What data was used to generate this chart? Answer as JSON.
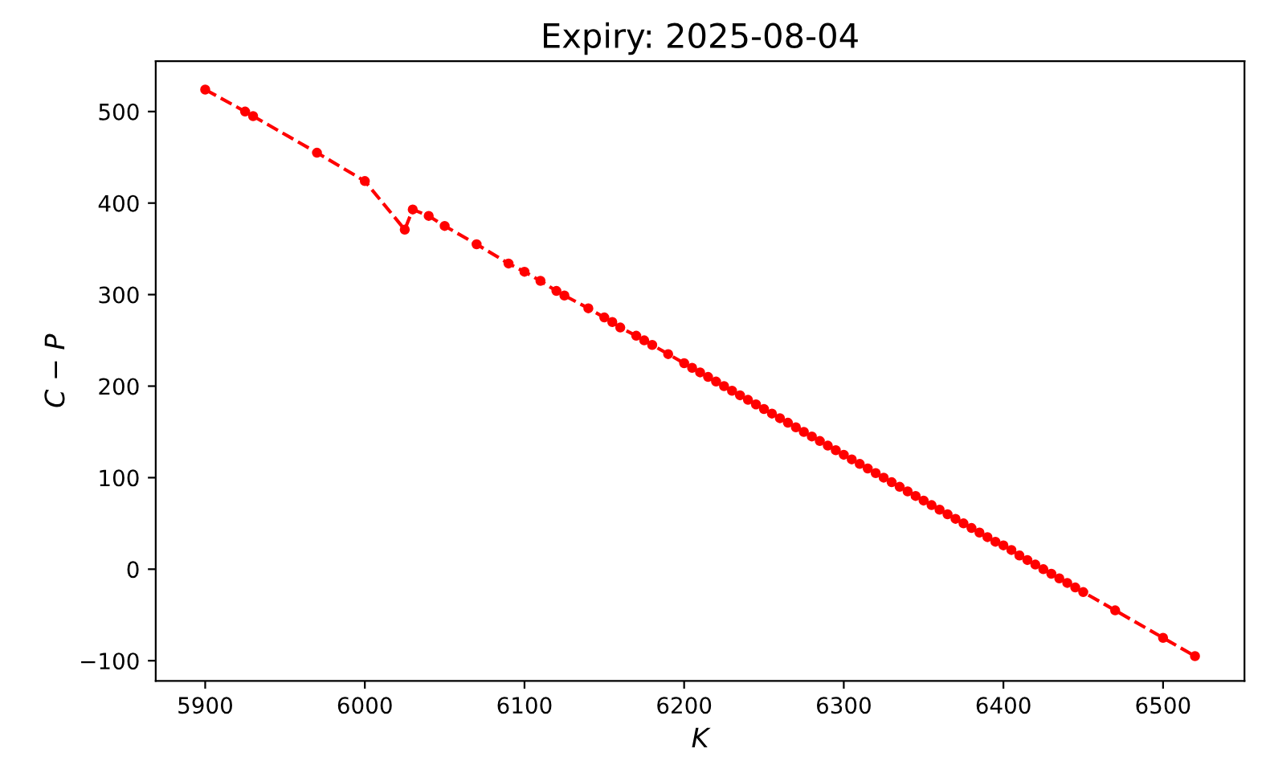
{
  "chart_data": {
    "type": "line",
    "title": "Expiry: 2025-08-04",
    "xlabel": "K",
    "ylabel": "C − P",
    "xlim": [
      5869,
      6551
    ],
    "ylim": [
      -122,
      555
    ],
    "xticks": [
      5900,
      6000,
      6100,
      6200,
      6300,
      6400,
      6500
    ],
    "yticks": [
      {
        "value": -100,
        "label": "−100"
      },
      0,
      100,
      200,
      300,
      400,
      500
    ],
    "marker": "circle",
    "line_style": "dashed",
    "series": [
      {
        "color": "#ff0000",
        "x": [
          5900,
          5925,
          5930,
          5970,
          6000,
          6025,
          6030,
          6040,
          6050,
          6070,
          6090,
          6100,
          6110,
          6120,
          6125,
          6140,
          6150,
          6155,
          6160,
          6170,
          6175,
          6180,
          6190,
          6200,
          6205,
          6210,
          6215,
          6220,
          6225,
          6230,
          6235,
          6240,
          6245,
          6250,
          6255,
          6260,
          6265,
          6270,
          6275,
          6280,
          6285,
          6290,
          6295,
          6300,
          6305,
          6310,
          6315,
          6320,
          6325,
          6330,
          6335,
          6340,
          6345,
          6350,
          6355,
          6360,
          6365,
          6370,
          6375,
          6380,
          6385,
          6390,
          6395,
          6400,
          6405,
          6410,
          6415,
          6420,
          6425,
          6430,
          6435,
          6440,
          6445,
          6450,
          6470,
          6500,
          6520
        ],
        "values": [
          524,
          500,
          495,
          455,
          424,
          371,
          393,
          386,
          375,
          355,
          334,
          325,
          315,
          304,
          299,
          285,
          275,
          270,
          264,
          255,
          250,
          245,
          235,
          225,
          220,
          215,
          210,
          205,
          200,
          195,
          190,
          185,
          180,
          175,
          170,
          165,
          160,
          155,
          150,
          145,
          140,
          135,
          130,
          125,
          120,
          115,
          110,
          105,
          100,
          95,
          90,
          85,
          80,
          75,
          70,
          65,
          60,
          55,
          50,
          45,
          40,
          35,
          30,
          26,
          21,
          15,
          10,
          5,
          0,
          -5,
          -10,
          -15,
          -20,
          -25,
          -45,
          -75,
          -95
        ]
      }
    ]
  }
}
